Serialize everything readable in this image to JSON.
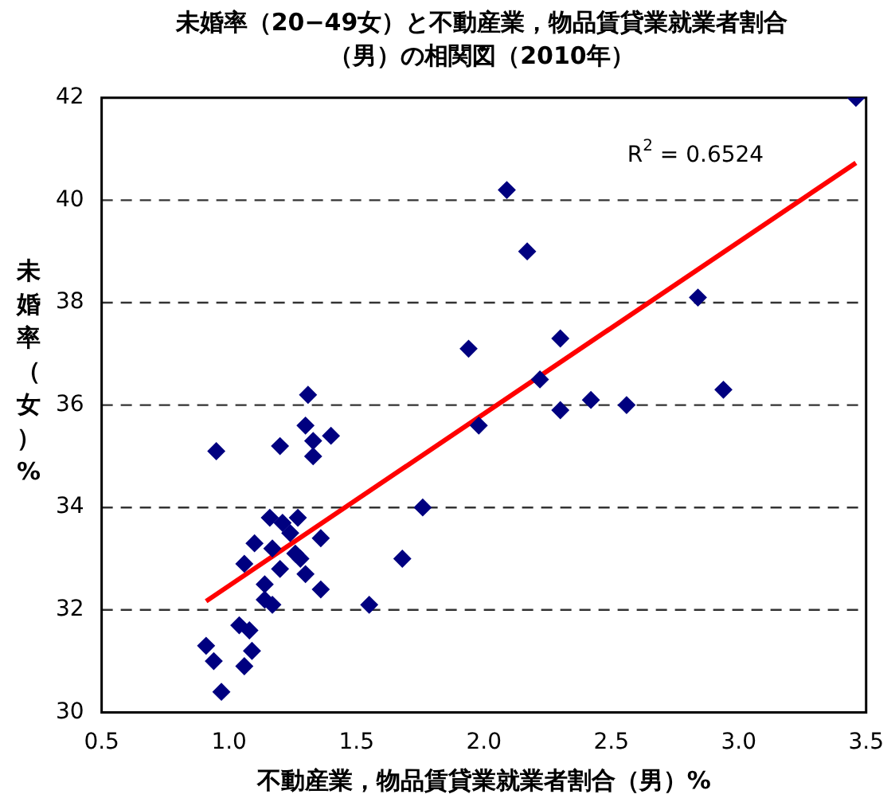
{
  "chart_data": {
    "type": "scatter",
    "title": "未婚率（20−49女）と不動産業，物品賃貸業就業者割合（男）の相関図（2010年）",
    "xlabel": "不動産業，物品賃貸業就業者割合（男）%",
    "ylabel": "未婚率（女）%",
    "xlim": [
      0.5,
      3.5
    ],
    "xticks": [
      {
        "value": 0.5,
        "label": "0.5"
      },
      {
        "value": 1,
        "label": "1.0"
      },
      {
        "value": 1.5,
        "label": "1.5"
      },
      {
        "value": 2,
        "label": "2.0"
      },
      {
        "value": 2.5,
        "label": "2.5"
      },
      {
        "value": 3,
        "label": "3.0"
      },
      {
        "value": 3.5,
        "label": "3.5"
      }
    ],
    "ylim": [
      30,
      42
    ],
    "yticks": [
      30,
      32,
      34,
      36,
      38,
      40,
      42
    ],
    "grid": "y",
    "marker": "diamond",
    "legend": false,
    "annotations": [
      "R$^{2}$ = 0.6524"
    ],
    "series": [
      {
        "color": "#000080",
        "x": [
          1.31,
          1.3,
          1.4,
          1.33,
          1.33,
          1.2,
          0.95,
          1.16,
          1.21,
          1.27,
          1.24,
          1.1,
          1.17,
          1.26,
          1.36,
          1.06,
          1.28,
          1.2,
          1.3,
          1.14,
          1.36,
          1.14,
          1.17,
          1.55,
          1.04,
          1.08,
          0.91,
          0.94,
          1.09,
          1.06,
          0.97,
          1.68,
          1.76,
          2.09,
          2.17,
          2.84,
          1.94,
          2.3,
          2.22,
          2.94,
          2.42,
          2.3,
          2.56,
          1.98,
          3.46
        ],
        "values": [
          36.2,
          35.6,
          35.4,
          35.3,
          35.0,
          35.2,
          35.1,
          33.8,
          33.7,
          33.8,
          33.5,
          33.3,
          33.2,
          33.1,
          33.4,
          32.9,
          33.0,
          32.8,
          32.7,
          32.5,
          32.4,
          32.2,
          32.1,
          32.1,
          31.7,
          31.6,
          31.3,
          31.0,
          31.2,
          30.9,
          30.4,
          33.0,
          34.0,
          40.2,
          39.0,
          38.1,
          37.1,
          37.3,
          36.5,
          36.3,
          36.1,
          35.9,
          36.0,
          35.6,
          42.0
        ]
      },
      {
        "type": "line",
        "color": "#ff0000",
        "marker": "none",
        "x": [
          0.91,
          3.46
        ],
        "values": [
          32.17,
          40.73
        ]
      }
    ]
  }
}
